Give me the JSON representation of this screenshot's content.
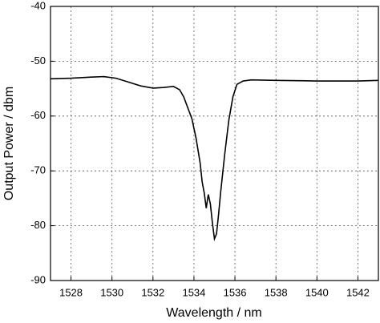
{
  "chart_data": {
    "type": "line",
    "x_label": "Wavelength / nm",
    "y_label": "Output Power / dbm",
    "xlim": [
      1527,
      1543
    ],
    "xticks": [
      1528,
      1530,
      1532,
      1534,
      1536,
      1538,
      1540,
      1542
    ],
    "ylim": [
      -90,
      -40
    ],
    "yticks": [
      -90,
      -80,
      -70,
      -60,
      -50,
      -40
    ],
    "grid": true,
    "series": [
      {
        "color": "#000000",
        "x": [
          1527,
          1528,
          1529,
          1529.6,
          1530.2,
          1530.8,
          1531.4,
          1532,
          1532.5,
          1533,
          1533.3,
          1533.5,
          1533.7,
          1533.9,
          1534.1,
          1534.3,
          1534.4,
          1534.5,
          1534.6,
          1534.65,
          1534.7,
          1534.8,
          1534.9,
          1535.0,
          1535.1,
          1535.2,
          1535.3,
          1535.5,
          1535.7,
          1535.9,
          1536.1,
          1536.4,
          1536.8,
          1538,
          1540,
          1542,
          1543
        ],
        "values": [
          -53.2,
          -53.1,
          -52.9,
          -52.8,
          -53.1,
          -53.8,
          -54.5,
          -54.9,
          -54.8,
          -54.6,
          -55.2,
          -56.5,
          -58.5,
          -60.5,
          -64,
          -68.5,
          -72,
          -74,
          -76.8,
          -75.5,
          -74.3,
          -76,
          -79.5,
          -82.4,
          -81.5,
          -78,
          -74,
          -67,
          -60.8,
          -56.5,
          -54.2,
          -53.6,
          -53.4,
          -53.5,
          -53.6,
          -53.6,
          -53.5
        ]
      }
    ]
  }
}
